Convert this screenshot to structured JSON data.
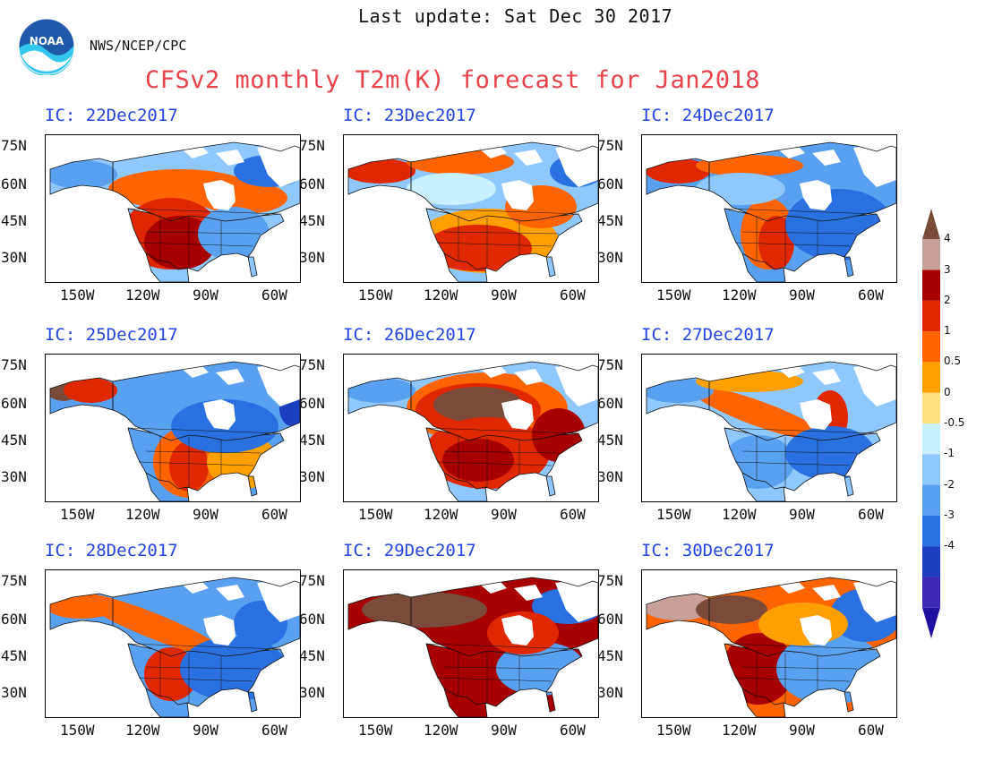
{
  "header": {
    "last_update": "Last update: Sat Dec 30 2017",
    "agency": "NWS/NCEP/CPC",
    "title": "CFSv2 monthly T2m(K) forecast for Jan2018",
    "logo_text": "NOAA"
  },
  "axes": {
    "lat_labels": [
      "75N",
      "60N",
      "45N",
      "30N"
    ],
    "lon_labels": [
      "150W",
      "120W",
      "90W",
      "60W"
    ]
  },
  "panels": [
    {
      "label": "IC: 22Dec2017",
      "pattern": "west-warm"
    },
    {
      "label": "IC: 23Dec2017",
      "pattern": "south-warm"
    },
    {
      "label": "IC: 24Dec2017",
      "pattern": "southwest-warm"
    },
    {
      "label": "IC: 25Dec2017",
      "pattern": "cold-alaska-warm"
    },
    {
      "label": "IC: 26Dec2017",
      "pattern": "canada-hot"
    },
    {
      "label": "IC: 27Dec2017",
      "pattern": "band-warm"
    },
    {
      "label": "IC: 28Dec2017",
      "pattern": "band-warm-cold-east"
    },
    {
      "label": "IC: 29Dec2017",
      "pattern": "very-hot"
    },
    {
      "label": "IC: 30Dec2017",
      "pattern": "hot-west-cold-east"
    }
  ],
  "colorbar": {
    "labels": [
      "4",
      "3",
      "2",
      "1",
      "0.5",
      "0",
      "-0.5",
      "-1",
      "-2",
      "-3",
      "-4"
    ],
    "colors": [
      "#7a4a3a",
      "#c8a09a",
      "#a80000",
      "#e02800",
      "#ff6400",
      "#ffa000",
      "#ffe080",
      "#c8f0ff",
      "#8ec8ff",
      "#5aa0f0",
      "#2a70e0",
      "#1a40c0",
      "#3c28b4",
      "#2010a0"
    ]
  }
}
